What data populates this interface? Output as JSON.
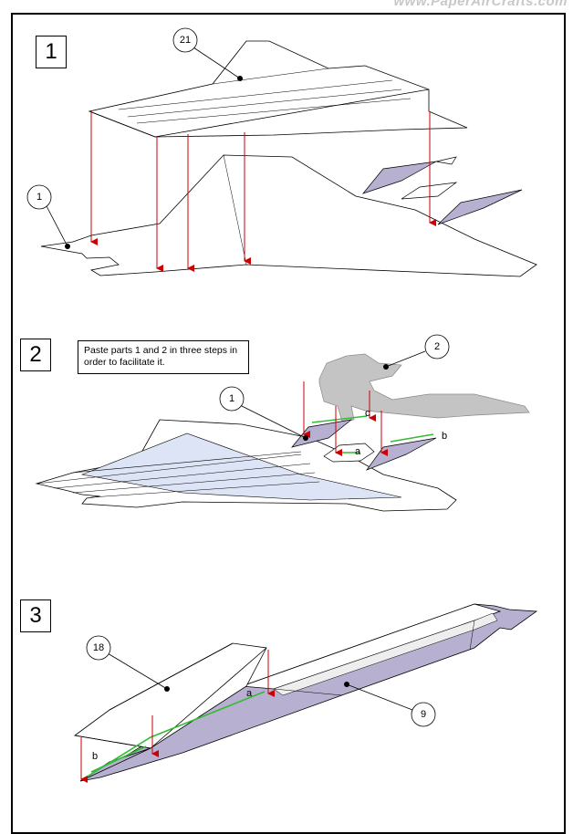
{
  "watermark": "www.PaperAirCrafts.com",
  "steps": [
    {
      "number": "1",
      "callouts": [
        "21",
        "1"
      ]
    },
    {
      "number": "2",
      "callouts": [
        "2",
        "1"
      ],
      "note": "Paste parts 1 and 2 in three steps in order to facilitate it.",
      "letters": [
        "c",
        "a",
        "b"
      ]
    },
    {
      "number": "3",
      "callouts": [
        "18",
        "9"
      ],
      "letters": [
        "a",
        "b"
      ]
    }
  ],
  "colors": {
    "arrow": "#cc0000",
    "glue_line": "#33bb33",
    "shade_purple": "#b8b0d0",
    "shade_gray": "#c4c4c4",
    "shade_blue": "#dde4f6"
  }
}
